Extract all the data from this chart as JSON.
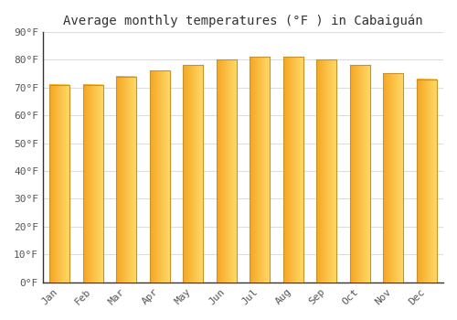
{
  "title": "Average monthly temperatures (°F ) in Cabaiguán",
  "months": [
    "Jan",
    "Feb",
    "Mar",
    "Apr",
    "May",
    "Jun",
    "Jul",
    "Aug",
    "Sep",
    "Oct",
    "Nov",
    "Dec"
  ],
  "values": [
    71,
    71,
    74,
    76,
    78,
    80,
    81,
    81,
    80,
    78,
    75,
    73
  ],
  "bar_color_left": "#F5A623",
  "bar_color_right": "#FFD966",
  "bar_edge_color": "#C8922A",
  "ylim": [
    0,
    90
  ],
  "yticks": [
    0,
    10,
    20,
    30,
    40,
    50,
    60,
    70,
    80,
    90
  ],
  "ytick_labels": [
    "0°F",
    "10°F",
    "20°F",
    "30°F",
    "40°F",
    "50°F",
    "60°F",
    "70°F",
    "80°F",
    "90°F"
  ],
  "background_color": "#ffffff",
  "grid_color": "#dddddd",
  "title_fontsize": 10,
  "tick_fontsize": 8,
  "font_family": "monospace"
}
